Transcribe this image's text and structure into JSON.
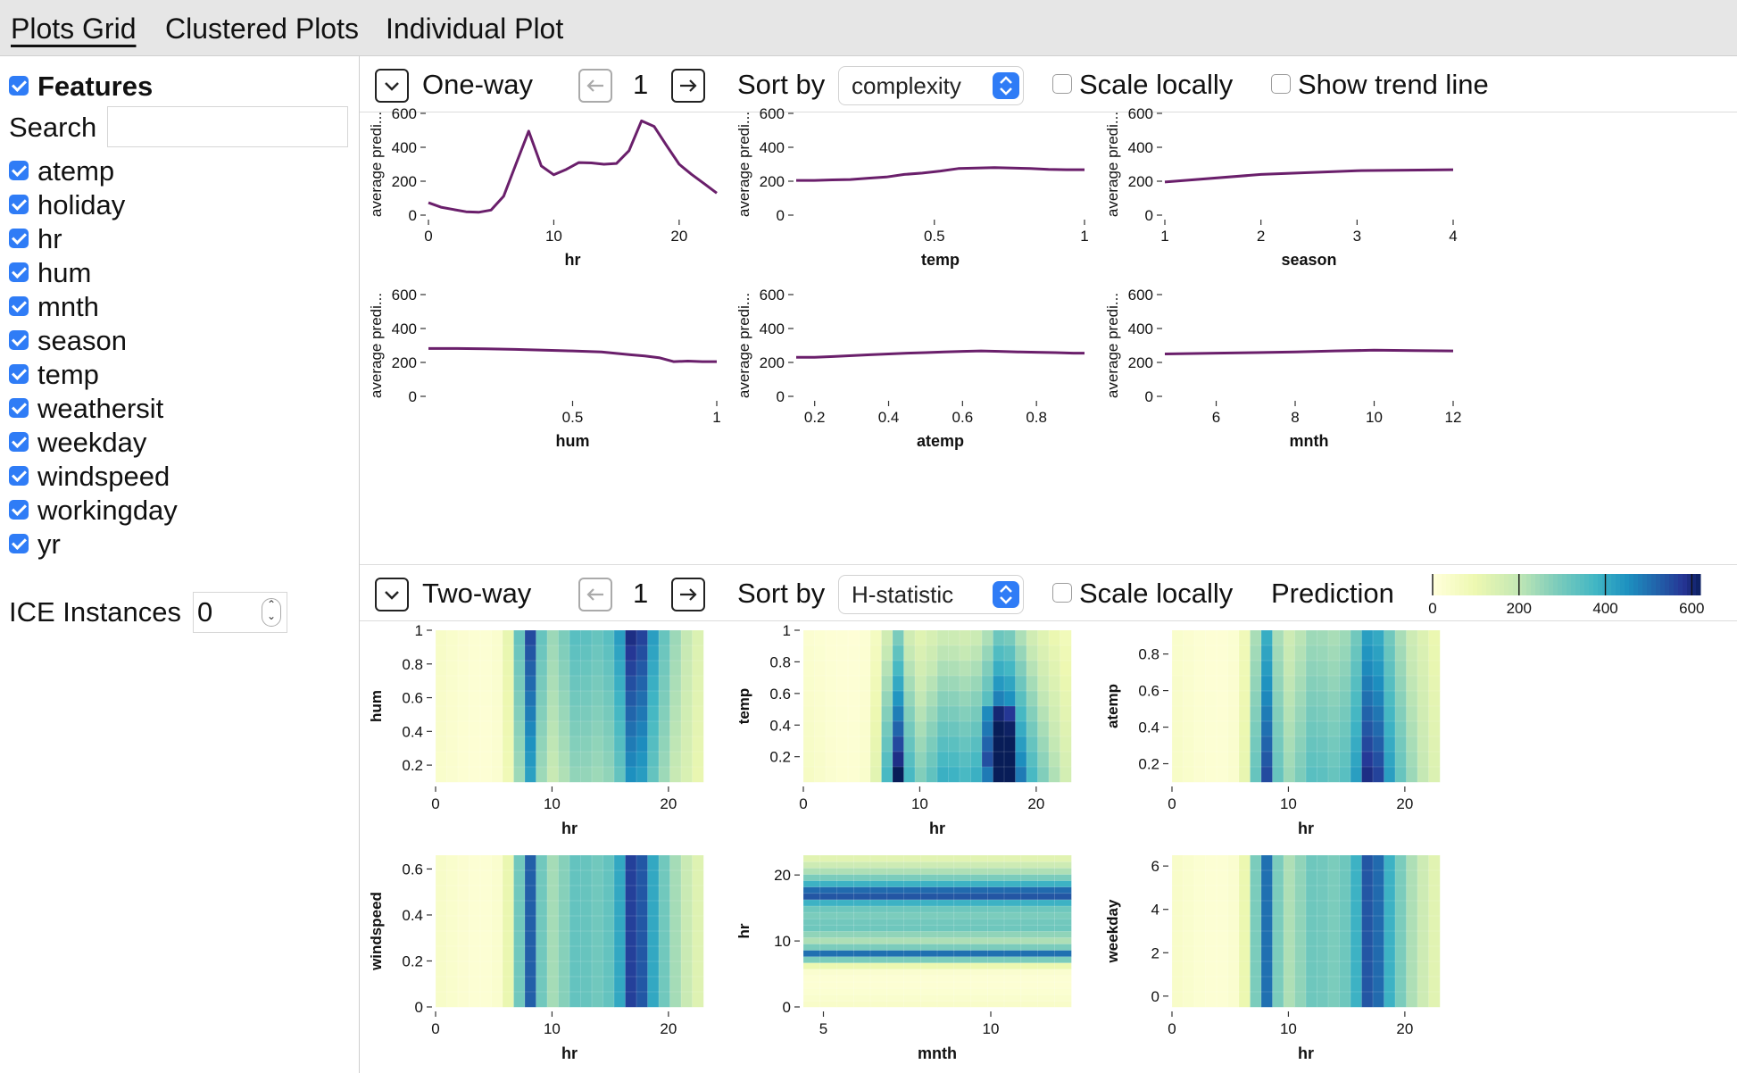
{
  "tabs": [
    {
      "label": "Plots Grid",
      "active": true
    },
    {
      "label": "Clustered Plots",
      "active": false
    },
    {
      "label": "Individual Plot",
      "active": false
    }
  ],
  "sidebar": {
    "features_label": "Features",
    "search_label": "Search",
    "search_value": "",
    "features": [
      "atemp",
      "holiday",
      "hr",
      "hum",
      "mnth",
      "season",
      "temp",
      "weathersit",
      "weekday",
      "windspeed",
      "workingday",
      "yr"
    ],
    "ice_label": "ICE Instances",
    "ice_value": "0"
  },
  "oneway": {
    "title": "One-way",
    "page": "1",
    "sort_label": "Sort by",
    "sort_value": "complexity",
    "scale_locally": "Scale locally",
    "show_trend": "Show trend line"
  },
  "twoway": {
    "title": "Two-way",
    "page": "1",
    "sort_label": "Sort by",
    "sort_value": "H-statistic",
    "scale_locally": "Scale locally",
    "legend_title": "Prediction",
    "legend_ticks": [
      "0",
      "200",
      "400",
      "600"
    ]
  },
  "colors": {
    "line": "#6a1f6b",
    "accent": "#2f7cf6"
  },
  "chart_data": [
    {
      "type": "line",
      "xlabel": "hr",
      "ylabel": "average predi...",
      "ylim": [
        0,
        600
      ],
      "yticks": [
        0,
        200,
        400,
        600
      ],
      "xlim": [
        0,
        23
      ],
      "xticks": [
        0,
        10,
        20
      ],
      "x": [
        0,
        1,
        2,
        3,
        4,
        5,
        6,
        7,
        8,
        9,
        10,
        11,
        12,
        13,
        14,
        15,
        16,
        17,
        18,
        19,
        20,
        21,
        22,
        23
      ],
      "y": [
        73,
        47,
        33,
        20,
        17,
        30,
        112,
        305,
        495,
        290,
        238,
        270,
        310,
        308,
        300,
        305,
        380,
        556,
        523,
        410,
        300,
        240,
        185,
        130
      ]
    },
    {
      "type": "line",
      "xlabel": "temp",
      "ylabel": "average predi...",
      "ylim": [
        0,
        600
      ],
      "yticks": [
        0,
        200,
        400,
        600
      ],
      "xlim": [
        0.04,
        1
      ],
      "xticks": [
        0.5,
        1
      ],
      "x": [
        0.04,
        0.1,
        0.16,
        0.22,
        0.28,
        0.34,
        0.4,
        0.46,
        0.52,
        0.58,
        0.64,
        0.7,
        0.76,
        0.82,
        0.88,
        0.94,
        1
      ],
      "y": [
        205,
        205,
        208,
        210,
        218,
        225,
        240,
        248,
        260,
        275,
        278,
        280,
        278,
        275,
        270,
        268,
        268
      ]
    },
    {
      "type": "line",
      "xlabel": "season",
      "ylabel": "average predi...",
      "ylim": [
        0,
        600
      ],
      "yticks": [
        0,
        200,
        400,
        600
      ],
      "xlim": [
        1,
        4
      ],
      "xticks": [
        1,
        2,
        3,
        4
      ],
      "x": [
        1,
        2,
        3,
        4
      ],
      "y": [
        195,
        240,
        262,
        268
      ]
    },
    {
      "type": "line",
      "xlabel": "hum",
      "ylabel": "average predi...",
      "ylim": [
        0,
        600
      ],
      "yticks": [
        0,
        200,
        400,
        600
      ],
      "xlim": [
        0,
        1
      ],
      "xticks": [
        0.5,
        1
      ],
      "x": [
        0,
        0.1,
        0.2,
        0.3,
        0.4,
        0.5,
        0.6,
        0.7,
        0.75,
        0.8,
        0.85,
        0.9,
        0.95,
        1
      ],
      "y": [
        282,
        282,
        280,
        277,
        272,
        268,
        262,
        245,
        238,
        228,
        205,
        208,
        205,
        205
      ]
    },
    {
      "type": "line",
      "xlabel": "atemp",
      "ylabel": "average predi...",
      "ylim": [
        0,
        600
      ],
      "yticks": [
        0,
        200,
        400,
        600
      ],
      "xlim": [
        0.15,
        0.93
      ],
      "xticks": [
        0.2,
        0.4,
        0.6,
        0.8
      ],
      "x": [
        0.15,
        0.2,
        0.25,
        0.3,
        0.35,
        0.4,
        0.45,
        0.5,
        0.55,
        0.6,
        0.65,
        0.7,
        0.75,
        0.8,
        0.85,
        0.9,
        0.93
      ],
      "y": [
        230,
        230,
        235,
        240,
        245,
        250,
        255,
        258,
        262,
        265,
        268,
        265,
        262,
        260,
        258,
        255,
        255
      ]
    },
    {
      "type": "line",
      "xlabel": "mnth",
      "ylabel": "average predi...",
      "ylim": [
        0,
        600
      ],
      "yticks": [
        0,
        200,
        400,
        600
      ],
      "xlim": [
        4.7,
        12
      ],
      "xticks": [
        6,
        8,
        10,
        12
      ],
      "x": [
        4.7,
        6,
        7,
        8,
        9,
        10,
        11,
        12
      ],
      "y": [
        250,
        255,
        258,
        262,
        268,
        272,
        270,
        268
      ]
    },
    {
      "type": "heatmap",
      "xlabel": "hr",
      "ylabel": "hum",
      "xlim": [
        0,
        23
      ],
      "xticks": [
        0,
        10,
        20
      ],
      "ylim": [
        0.1,
        1
      ],
      "yticks": [
        0.2,
        0.4,
        0.6,
        0.8,
        1
      ]
    },
    {
      "type": "heatmap",
      "xlabel": "hr",
      "ylabel": "temp",
      "xlim": [
        0,
        23
      ],
      "xticks": [
        0,
        10,
        20
      ],
      "ylim": [
        0.04,
        1
      ],
      "yticks": [
        0.2,
        0.4,
        0.6,
        0.8,
        1
      ]
    },
    {
      "type": "heatmap",
      "xlabel": "hr",
      "ylabel": "atemp",
      "xlim": [
        0,
        23
      ],
      "xticks": [
        0,
        10,
        20
      ],
      "ylim": [
        0.1,
        0.93
      ],
      "yticks": [
        0.2,
        0.4,
        0.6,
        0.8
      ]
    },
    {
      "type": "heatmap",
      "xlabel": "hr",
      "ylabel": "windspeed",
      "xlim": [
        0,
        23
      ],
      "xticks": [
        0,
        10,
        20
      ],
      "ylim": [
        0,
        0.66
      ],
      "yticks": [
        0,
        0.2,
        0.4,
        0.6
      ]
    },
    {
      "type": "heatmap",
      "xlabel": "mnth",
      "ylabel": "hr",
      "xlim": [
        4.4,
        12.4
      ],
      "xticks": [
        5,
        10
      ],
      "ylim": [
        0,
        23
      ],
      "yticks": [
        0,
        10,
        20
      ]
    },
    {
      "type": "heatmap",
      "xlabel": "hr",
      "ylabel": "weekday",
      "xlim": [
        0,
        23
      ],
      "xticks": [
        0,
        10,
        20
      ],
      "ylim": [
        -0.5,
        6.5
      ],
      "yticks": [
        0,
        2,
        4,
        6
      ]
    }
  ]
}
